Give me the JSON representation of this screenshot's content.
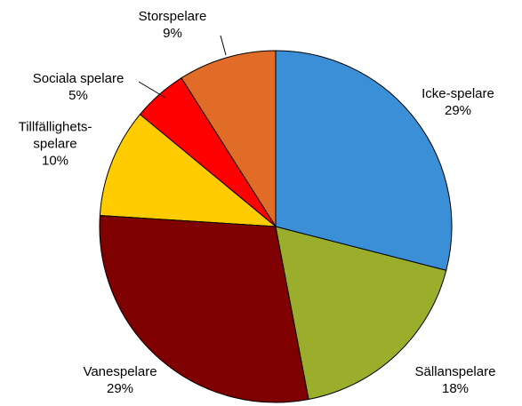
{
  "chart_data": {
    "type": "pie",
    "categories": [
      "Icke-spelare",
      "Sällanspelare",
      "Vanespelare",
      "Tillfällighets-spelare",
      "Sociala spelare",
      "Storspelare"
    ],
    "values": [
      29,
      18,
      29,
      10,
      5,
      9
    ],
    "value_labels": [
      "29%",
      "18%",
      "29%",
      "10%",
      "5%",
      "9%"
    ],
    "colors": [
      "#3a8fd6",
      "#9aae2b",
      "#7f0000",
      "#ffcc00",
      "#ff0000",
      "#e06c28"
    ]
  }
}
